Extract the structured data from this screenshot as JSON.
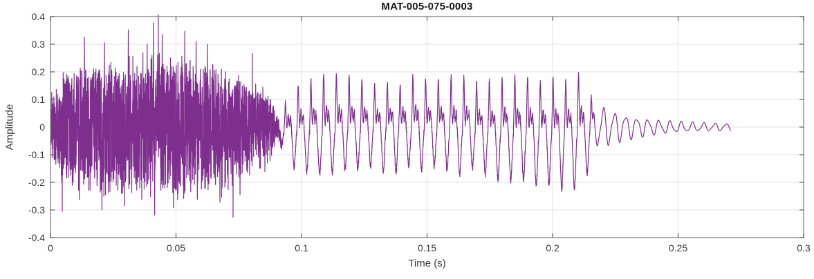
{
  "title": "MAT-005-075-0003",
  "chart_data": {
    "type": "line",
    "title": "MAT-005-075-0003",
    "xlabel": "Time (s)",
    "ylabel": "Amplitude",
    "xlim": [
      0,
      0.3
    ],
    "ylim": [
      -0.4,
      0.4
    ],
    "xticks": [
      0,
      0.05,
      0.1,
      0.15,
      0.2,
      0.25,
      0.3
    ],
    "xtick_labels": [
      "0",
      "0.05",
      "0.1",
      "0.15",
      "0.2",
      "0.25",
      "0.3"
    ],
    "yticks": [
      -0.4,
      -0.3,
      -0.2,
      -0.1,
      0,
      0.1,
      0.2,
      0.3,
      0.4
    ],
    "ytick_labels": [
      "-0.4",
      "-0.3",
      "-0.2",
      "-0.1",
      "0",
      "0.1",
      "0.2",
      "0.3",
      "0.4"
    ],
    "grid": true,
    "legend": null,
    "line_color": "#7E2F8E",
    "grid_color": "#E2E2E2",
    "frame_color": "#8a8a8a",
    "tick_color": "#595959",
    "signal": {
      "description": "speech-like waveform: broadband noise burst, then quasi-periodic voiced segment, then decaying ripple tail",
      "duration_s": 0.271,
      "sample_rate_hz": 22000,
      "noise_segment": {
        "t_start": 0.0,
        "t_end": 0.092,
        "envelope": [
          [
            0,
            0.11
          ],
          [
            0.003,
            0.16
          ],
          [
            0.007,
            0.2
          ],
          [
            0.012,
            0.235
          ],
          [
            0.018,
            0.215
          ],
          [
            0.024,
            0.235
          ],
          [
            0.03,
            0.245
          ],
          [
            0.036,
            0.23
          ],
          [
            0.042,
            0.25
          ],
          [
            0.048,
            0.235
          ],
          [
            0.054,
            0.245
          ],
          [
            0.06,
            0.225
          ],
          [
            0.066,
            0.215
          ],
          [
            0.072,
            0.195
          ],
          [
            0.078,
            0.165
          ],
          [
            0.084,
            0.135
          ],
          [
            0.09,
            0.11
          ],
          [
            0.094,
            0.1
          ]
        ],
        "spikes": [
          [
            0.0135,
            0.325
          ],
          [
            0.0215,
            0.305
          ],
          [
            0.031,
            0.352
          ],
          [
            0.0385,
            0.3
          ],
          [
            0.041,
            0.378
          ],
          [
            0.0445,
            0.335
          ],
          [
            0.0535,
            0.347
          ],
          [
            0.058,
            0.31
          ],
          [
            0.0625,
            0.3
          ],
          [
            0.0115,
            -0.262
          ],
          [
            0.0205,
            -0.3
          ],
          [
            0.0295,
            -0.285
          ],
          [
            0.0415,
            -0.318
          ],
          [
            0.049,
            -0.292
          ],
          [
            0.0585,
            -0.262
          ],
          [
            0.0675,
            -0.272
          ],
          [
            0.0755,
            -0.245
          ]
        ]
      },
      "voiced_segment": {
        "t_start": 0.088,
        "t_end": 0.2155,
        "f0_hz": 197,
        "pos_envelope": [
          [
            0.088,
            0.1
          ],
          [
            0.095,
            0.13
          ],
          [
            0.105,
            0.17
          ],
          [
            0.112,
            0.19
          ],
          [
            0.12,
            0.175
          ],
          [
            0.13,
            0.155
          ],
          [
            0.14,
            0.16
          ],
          [
            0.15,
            0.17
          ],
          [
            0.16,
            0.165
          ],
          [
            0.17,
            0.16
          ],
          [
            0.18,
            0.17
          ],
          [
            0.19,
            0.18
          ],
          [
            0.2,
            0.185
          ],
          [
            0.207,
            0.19
          ],
          [
            0.212,
            0.17
          ],
          [
            0.2155,
            0.12
          ]
        ],
        "neg_envelope": [
          [
            0.088,
            0.09
          ],
          [
            0.095,
            0.13
          ],
          [
            0.103,
            0.16
          ],
          [
            0.112,
            0.155
          ],
          [
            0.12,
            0.15
          ],
          [
            0.13,
            0.155
          ],
          [
            0.14,
            0.15
          ],
          [
            0.15,
            0.16
          ],
          [
            0.16,
            0.165
          ],
          [
            0.17,
            0.16
          ],
          [
            0.18,
            0.17
          ],
          [
            0.19,
            0.185
          ],
          [
            0.2,
            0.195
          ],
          [
            0.206,
            0.2
          ],
          [
            0.211,
            0.19
          ],
          [
            0.2155,
            0.15
          ]
        ]
      },
      "tail_segment": {
        "t_start": 0.2155,
        "t_end": 0.271,
        "start_amplitude": 0.075,
        "end_amplitude": 0.011,
        "decay_tau_s": 0.016,
        "ripple_hz": 225
      }
    }
  }
}
